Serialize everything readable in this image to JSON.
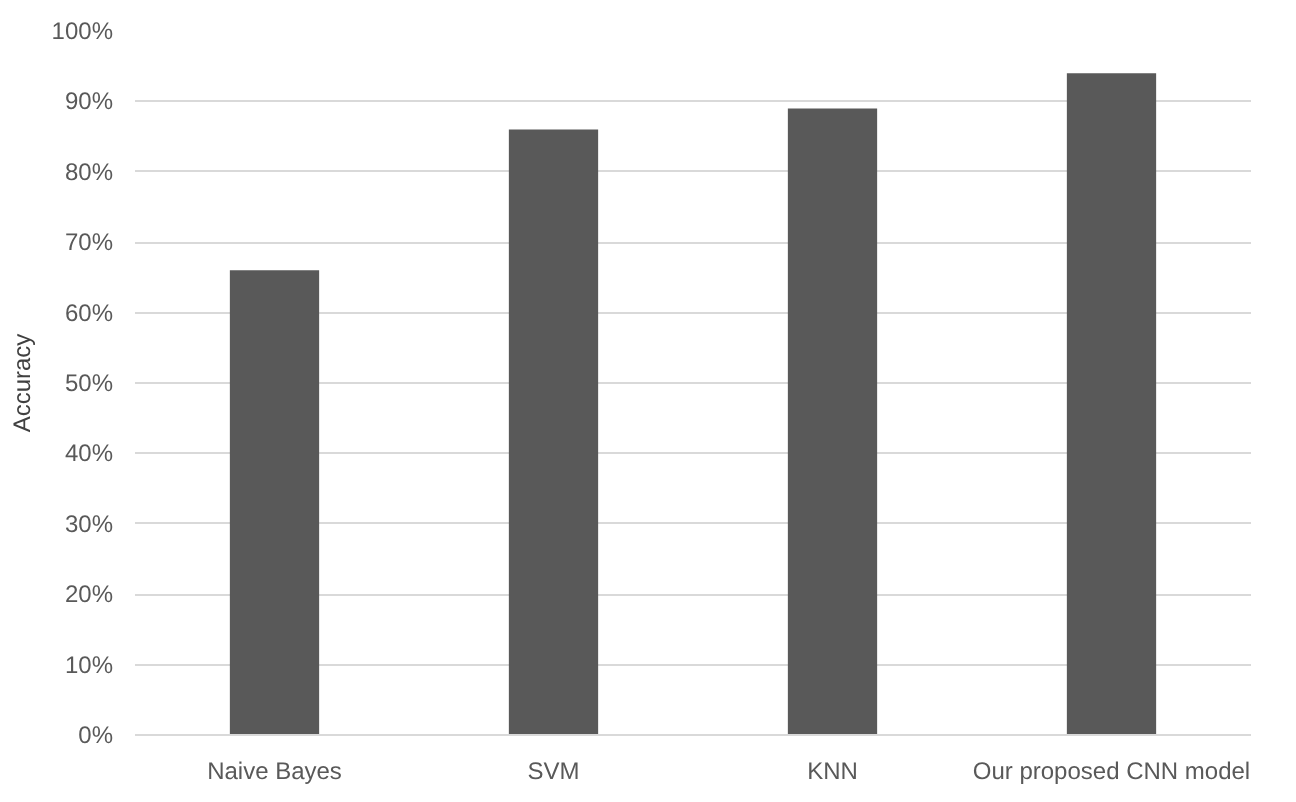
{
  "chart_data": {
    "type": "bar",
    "ylabel": "Accuracy",
    "categories": [
      "Naive Bayes",
      "SVM",
      "KNN",
      "Our proposed CNN model"
    ],
    "values": [
      66,
      86,
      89,
      94
    ],
    "color": "#595959",
    "ylim": [
      0,
      100
    ],
    "yticks": [
      {
        "value": 0,
        "label": "0%"
      },
      {
        "value": 10,
        "label": "10%"
      },
      {
        "value": 20,
        "label": "20%"
      },
      {
        "value": 30,
        "label": "30%"
      },
      {
        "value": 40,
        "label": "40%"
      },
      {
        "value": 50,
        "label": "50%"
      },
      {
        "value": 60,
        "label": "60%"
      },
      {
        "value": 70,
        "label": "70%"
      },
      {
        "value": 80,
        "label": "80%"
      },
      {
        "value": 90,
        "label": "90%"
      },
      {
        "value": 100,
        "label": "100%"
      }
    ],
    "grid": "y"
  }
}
